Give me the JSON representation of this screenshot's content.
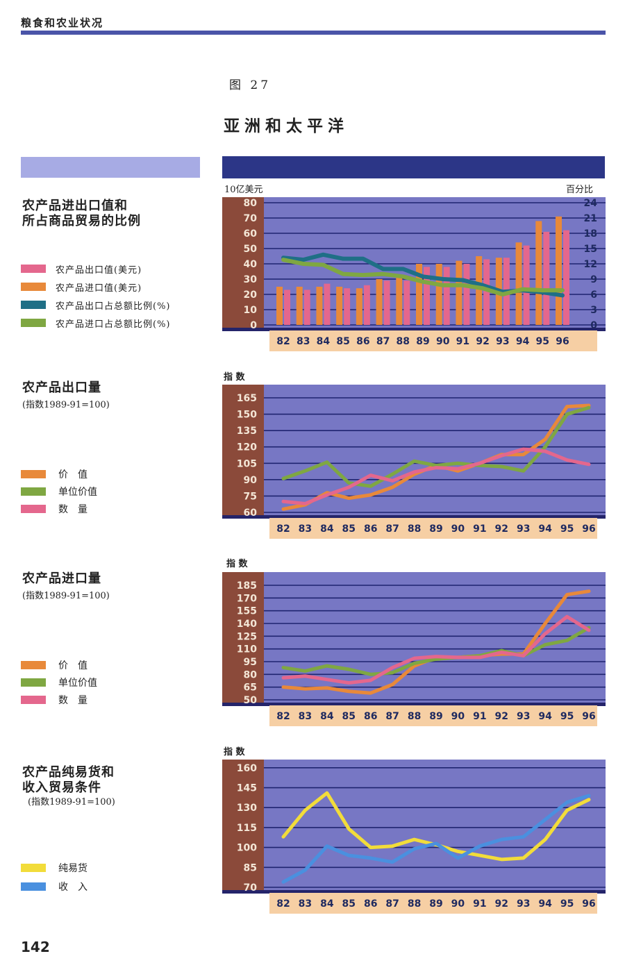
{
  "header": {
    "running_title": "粮食和农业状况",
    "figure_number": "图 27",
    "title": "亚洲和太平洋",
    "page_number": "142"
  },
  "colors": {
    "orange": "#e8893a",
    "pink": "#e4678d",
    "teal": "#1f6f86",
    "green": "#7fa742",
    "yellow": "#f2dc3a",
    "blue": "#4a90df"
  },
  "sections": {
    "trade": {
      "title_line1": "农产品进出口值和",
      "title_line2": "所占商品贸易的比例",
      "left_unit": "10亿美元",
      "right_unit": "百分比",
      "legend": [
        {
          "label": "农产品出口值(美元)",
          "color": "#e4678d"
        },
        {
          "label": "农产品进口值(美元)",
          "color": "#e8893a"
        },
        {
          "label": "农产品出口占总额比例(%)",
          "color": "#1f6f86"
        },
        {
          "label": "农产品进口占总额比例(%)",
          "color": "#7fa742"
        }
      ]
    },
    "exports": {
      "title": "农产品出口量",
      "subtitle": "(指数1989-91=100)",
      "axis_label": "指 数",
      "legend": [
        {
          "label": "价　值",
          "color": "#e8893a"
        },
        {
          "label": "单位价值",
          "color": "#7fa742"
        },
        {
          "label": "数　量",
          "color": "#e4678d"
        }
      ]
    },
    "imports": {
      "title": "农产品进口量",
      "subtitle": "(指数1989-91=100)",
      "axis_label": "指 数",
      "legend": [
        {
          "label": "价　值",
          "color": "#e8893a"
        },
        {
          "label": "单位价值",
          "color": "#7fa742"
        },
        {
          "label": "数　量",
          "color": "#e4678d"
        }
      ]
    },
    "terms": {
      "title_line1": "农产品纯易货和",
      "title_line2": "收入贸易条件",
      "subtitle": "(指数1989-91=100)",
      "axis_label": "指 数",
      "legend": [
        {
          "label": "纯易货",
          "color": "#f2dc3a"
        },
        {
          "label": "收　入",
          "color": "#4a90df"
        }
      ]
    }
  },
  "chart_data": [
    {
      "type": "bar",
      "categories": [
        "82",
        "83",
        "84",
        "85",
        "86",
        "87",
        "88",
        "89",
        "90",
        "91",
        "92",
        "93",
        "94",
        "95",
        "96"
      ],
      "ylim": [
        0,
        80
      ],
      "yticks": [
        0,
        10,
        20,
        30,
        40,
        50,
        60,
        70,
        80
      ],
      "y2lim": [
        0,
        24
      ],
      "y2ticks": [
        0,
        3,
        6,
        9,
        12,
        15,
        18,
        21,
        24
      ],
      "series": [
        {
          "name": "农产品出口值(美元)",
          "axis": "left",
          "color": "#e4678d",
          "values": [
            23,
            23,
            27,
            24,
            26,
            29,
            29,
            38,
            38,
            40,
            43,
            44,
            52,
            61,
            62
          ]
        },
        {
          "name": "农产品进口值(美元)",
          "axis": "left",
          "color": "#e8893a",
          "values": [
            25,
            25,
            25,
            25,
            24,
            30,
            31,
            40,
            40,
            42,
            45,
            44,
            54,
            68,
            71
          ]
        },
        {
          "name": "农产品出口占总额比例(%)",
          "axis": "right",
          "type": "line",
          "color": "#1f6f86",
          "values": [
            13.2,
            12.8,
            13.8,
            13.0,
            13.0,
            11.0,
            11.0,
            9.5,
            9.0,
            8.8,
            7.8,
            6.5,
            6.8,
            6.4,
            5.8
          ]
        },
        {
          "name": "农产品进口占总额比例(%)",
          "axis": "right",
          "type": "line",
          "color": "#7fa742",
          "values": [
            12.8,
            12.0,
            11.8,
            10.0,
            9.8,
            10.0,
            9.5,
            8.5,
            7.8,
            7.8,
            7.2,
            6.0,
            7.0,
            6.8,
            6.8
          ]
        }
      ],
      "grid": true
    },
    {
      "type": "line",
      "x": [
        "82",
        "83",
        "84",
        "85",
        "86",
        "87",
        "88",
        "89",
        "90",
        "91",
        "92",
        "93",
        "94",
        "95",
        "96"
      ],
      "ylim": [
        60,
        172
      ],
      "yticks": [
        60,
        75,
        90,
        105,
        120,
        135,
        150,
        165
      ],
      "series": [
        {
          "name": "价　值",
          "color": "#e8893a",
          "values": [
            63,
            67,
            78,
            73,
            76,
            83,
            95,
            103,
            98,
            105,
            113,
            113,
            127,
            157,
            158
          ]
        },
        {
          "name": "单位价值",
          "color": "#7fa742",
          "values": [
            91,
            98,
            106,
            87,
            84,
            95,
            107,
            103,
            105,
            103,
            102,
            98,
            120,
            150,
            156
          ]
        },
        {
          "name": "数　量",
          "color": "#e4678d",
          "values": [
            70,
            68,
            76,
            83,
            94,
            89,
            97,
            101,
            100,
            105,
            112,
            118,
            116,
            108,
            104
          ]
        }
      ],
      "grid": true
    },
    {
      "type": "line",
      "x": [
        "82",
        "83",
        "84",
        "85",
        "86",
        "87",
        "88",
        "89",
        "90",
        "91",
        "92",
        "93",
        "94",
        "95",
        "96"
      ],
      "ylim": [
        50,
        194
      ],
      "yticks": [
        50,
        65,
        80,
        95,
        110,
        125,
        140,
        155,
        170,
        185
      ],
      "series": [
        {
          "name": "价　值",
          "color": "#e8893a",
          "values": [
            65,
            63,
            64,
            60,
            58,
            68,
            90,
            100,
            100,
            102,
            104,
            104,
            140,
            174,
            178
          ]
        },
        {
          "name": "单位价值",
          "color": "#7fa742",
          "values": [
            88,
            84,
            90,
            86,
            80,
            82,
            93,
            98,
            100,
            102,
            108,
            102,
            115,
            120,
            135
          ]
        },
        {
          "name": "数　量",
          "color": "#e4678d",
          "values": [
            76,
            78,
            74,
            70,
            73,
            88,
            99,
            101,
            100,
            100,
            106,
            102,
            128,
            148,
            132
          ]
        }
      ],
      "grid": true
    },
    {
      "type": "line",
      "x": [
        "82",
        "83",
        "84",
        "85",
        "86",
        "87",
        "88",
        "89",
        "90",
        "91",
        "92",
        "93",
        "94",
        "95",
        "96"
      ],
      "ylim": [
        70,
        162
      ],
      "yticks": [
        70,
        85,
        100,
        115,
        130,
        145,
        160
      ],
      "series": [
        {
          "name": "纯易货",
          "color": "#f2dc3a",
          "values": [
            108,
            128,
            141,
            114,
            100,
            101,
            106,
            102,
            97,
            94,
            91,
            92,
            106,
            128,
            136
          ]
        },
        {
          "name": "收　入",
          "color": "#4a90df",
          "values": [
            74,
            83,
            101,
            94,
            92,
            89,
            99,
            103,
            92,
            101,
            106,
            108,
            121,
            134,
            139
          ]
        }
      ],
      "grid": true
    }
  ]
}
